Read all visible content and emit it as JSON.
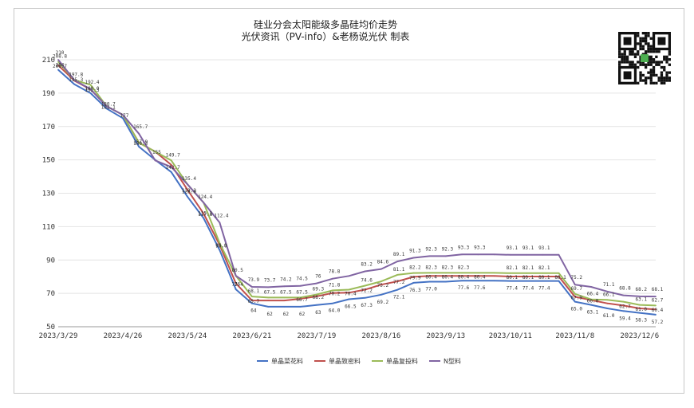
{
  "chart_data": {
    "type": "line",
    "title": "硅业分会太阳能级多晶硅均价走势",
    "subtitle": "光伏资讯（PV-info）&老杨说光伏 制表",
    "ylim": [
      50,
      210
    ],
    "yticks": [
      50,
      70,
      90,
      110,
      130,
      150,
      170,
      190,
      210
    ],
    "xtick_labels": [
      "2023/3/29",
      "2023/4/26",
      "2023/5/24",
      "2023/6/21",
      "2023/7/19",
      "2023/8/16",
      "2023/9/13",
      "2023/10/11",
      "2023/11/8",
      "2023/12/6"
    ],
    "xtick_index": [
      0,
      4,
      8,
      12,
      16,
      20,
      24,
      28,
      32,
      36
    ],
    "grid": true,
    "legend": "bottom",
    "series": [
      {
        "name": "单晶菜花料",
        "color": "#4472c4",
        "values": [
          204,
          195.3,
          190,
          180.7,
          175,
          157.9,
          150,
          142.7,
          128.0,
          115.1,
          95.9,
          72.4,
          64,
          62,
          62,
          62,
          63,
          64,
          66.5,
          67.3,
          69.2,
          72.1,
          76.3,
          77.0,
          77.0,
          77.6,
          77.6,
          77.6,
          77.4,
          77.4,
          77.4,
          77.4,
          65.0,
          63.1,
          61.0,
          59.4,
          58.3,
          57.2
        ]
      },
      {
        "name": "单晶致密料",
        "color": "#c0504d",
        "values": [
          206.7,
          197.5,
          192.3,
          182.1,
          177,
          160.3,
          155,
          147.0,
          132.2,
          117.8,
          99.0,
          76,
          65.7,
          65.7,
          65.7,
          66.7,
          68.2,
          70.2,
          70.4,
          72.2,
          75.2,
          77.2,
          79.9,
          80.4,
          80.4,
          80.4,
          80.4,
          80.4,
          80.1,
          80.1,
          80.1,
          80.1,
          67.9,
          66.0,
          64.0,
          62.7,
          61.0,
          60.4
        ]
      },
      {
        "name": "单晶复投料",
        "color": "#9bbb59",
        "values": [
          208.8,
          197.8,
          195.0,
          182.1,
          177,
          160.3,
          155,
          149.7,
          135.4,
          124.4,
          100.0,
          80.5,
          68.1,
          67.5,
          67.5,
          67.5,
          69.3,
          71.8,
          72.2,
          74.6,
          77.2,
          81.1,
          82.2,
          82.3,
          82.3,
          82.3,
          82.3,
          82.3,
          82.1,
          82.1,
          82.1,
          82.1,
          69.7,
          66.4,
          66.1,
          65.0,
          63.1,
          62.7
        ]
      },
      {
        "name": "N型料",
        "color": "#8064a2",
        "values": [
          210,
          197.8,
          192.4,
          182.1,
          177,
          165.7,
          149.7,
          145.7,
          135.4,
          124.4,
          112.4,
          80.5,
          73.9,
          73.7,
          74.2,
          74.5,
          76,
          78.8,
          80.4,
          83.2,
          84.6,
          89.1,
          91.3,
          92.3,
          92.3,
          93.3,
          93.3,
          93.3,
          93.1,
          93.1,
          93.1,
          93.1,
          75.2,
          73.9,
          71.1,
          68.8,
          68.2,
          68.1
        ]
      }
    ],
    "data_labels": [
      "208.8",
      "210",
      "206.7",
      "204",
      "197.8",
      "195.3",
      "192.4",
      "190.0",
      "192.3",
      "182.1",
      "180.7",
      "177",
      "165.7",
      "160.3",
      "157.9",
      "155",
      "149.7",
      "142.7",
      "140",
      "135.4",
      "132.2",
      "128.0",
      "125",
      "124.4",
      "117.8",
      "115.1",
      "112.4",
      "112",
      "103.9",
      "99.0",
      "95.9",
      "97",
      "91",
      "80.5",
      "74.6",
      "72.4",
      "76",
      "72.9",
      "73.7",
      "74.2",
      "74.5",
      "76",
      "78.8",
      "80.4",
      "83.2",
      "84.6",
      "89.1",
      "91.3",
      "92.3",
      "92.3",
      "93.3",
      "93.3",
      "93.1",
      "93.1",
      "93.1",
      "68.1",
      "67.5",
      "67.5",
      "67.5",
      "69.3",
      "70.2",
      "71.8",
      "72.2",
      "74.6",
      "77.2",
      "81.1",
      "82.2",
      "82.3",
      "82.3",
      "82.3",
      "82.1",
      "82.1",
      "82.1",
      "65.7",
      "66.7",
      "66.7",
      "68.2",
      "70.2",
      "70.4",
      "75.2",
      "79.9",
      "80.4",
      "80.4",
      "80.4",
      "80.1",
      "80.1",
      "80.1",
      "80.1",
      "63",
      "62",
      "62",
      "62",
      "63",
      "64",
      "66.5",
      "67.3",
      "69.2",
      "72.1",
      "76.3",
      "77.0",
      "77.6",
      "77.6",
      "77.4",
      "77.4",
      "77.4",
      "75.2",
      "73.9",
      "71.1",
      "68.8",
      "68.2",
      "68.1",
      "69.7",
      "67.9",
      "66.4",
      "66.1",
      "65.0",
      "66.0",
      "64.0",
      "62.7",
      "63.1",
      "61.0",
      "60.4",
      "62.7",
      "63.1",
      "61.0",
      "59.4",
      "58.3",
      "57.2"
    ]
  },
  "qr_code": {
    "icon": "qr-code-icon"
  }
}
